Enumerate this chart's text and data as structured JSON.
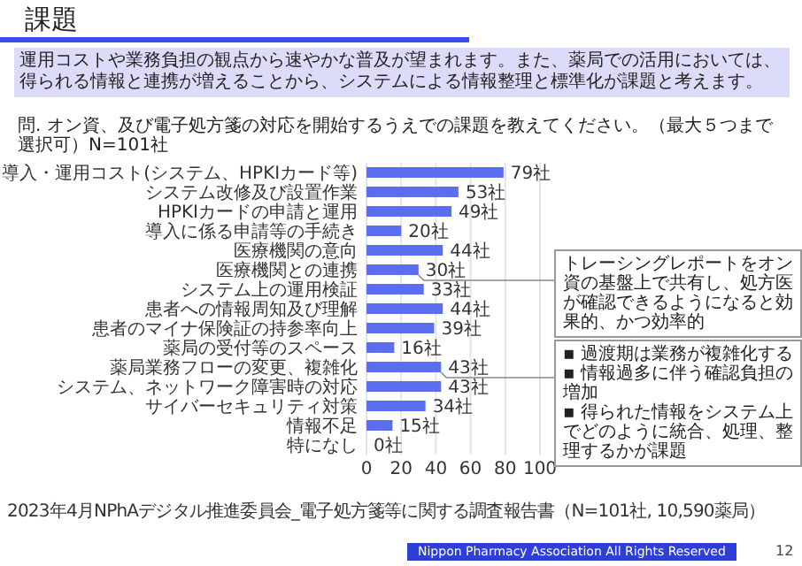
{
  "chart_data": {
    "type": "bar",
    "orientation": "horizontal",
    "title": "課題",
    "subtitle": "運用コストや業務負担の観点から速やかな普及が望まれます。また、薬局での活用においては、得られる情報と連携が増えることから、システムによる情報整理と標準化が課題と考えます。",
    "categories": [
      "導入・運用コスト(システム、HPKIカード等)",
      "システム改修及び設置作業",
      "HPKIカードの申請と運用",
      "導入に係る申請等の手続き",
      "医療機関の意向",
      "医療機関との連携",
      "システム上の運用検証",
      "患者への情報周知及び理解",
      "患者のマイナ保険証の持参率向上",
      "薬局の受付等のスペース",
      "薬局業務フローの変更、複雑化",
      "システム、ネットワーク障害時の対応",
      "サイバーセキュリティ対策",
      "情報不足",
      "特になし"
    ],
    "values": [
      79,
      53,
      49,
      20,
      44,
      30,
      33,
      44,
      39,
      16,
      43,
      43,
      34,
      15,
      0
    ],
    "value_labels": [
      "79社",
      "53社",
      "49社",
      "20社",
      "44社",
      "30社",
      "33社",
      "44社",
      "39社",
      "16社",
      "43社",
      "43社",
      "34社",
      "15社",
      "0社"
    ],
    "color": "#5b6ef0",
    "xlim": [
      0,
      100
    ],
    "xticks": [
      0,
      20,
      40,
      60,
      80,
      100
    ],
    "grid": "x",
    "annotations": [
      "問. オン資、及び電子処方箋の対応を開始するうえでの課題を教えてください。（最大５つまで選択可）N=101社",
      {
        "text": "トレーシングレポートをオン資の基盤上で共有し、処方医が確認できるようになると効果的、かつ効率的",
        "x": 30,
        "y": "医療機関との連携"
      },
      {
        "text": "▪ 過渡期は業務が複雑化する\n▪ 情報過多に伴う確認負担の増加\n▪ 得られた情報をシステム上でどのように統合、処理、整理するかが課題",
        "x": 43,
        "y": "薬局業務フローの変更、複雑化"
      },
      "2023年4月NPhAデジタル推進委員会_電子処方箋等に関する調査報告書（N=101社, 10,590薬局）",
      "Nippon Pharmacy Association All Rights Reserved",
      "12"
    ]
  }
}
